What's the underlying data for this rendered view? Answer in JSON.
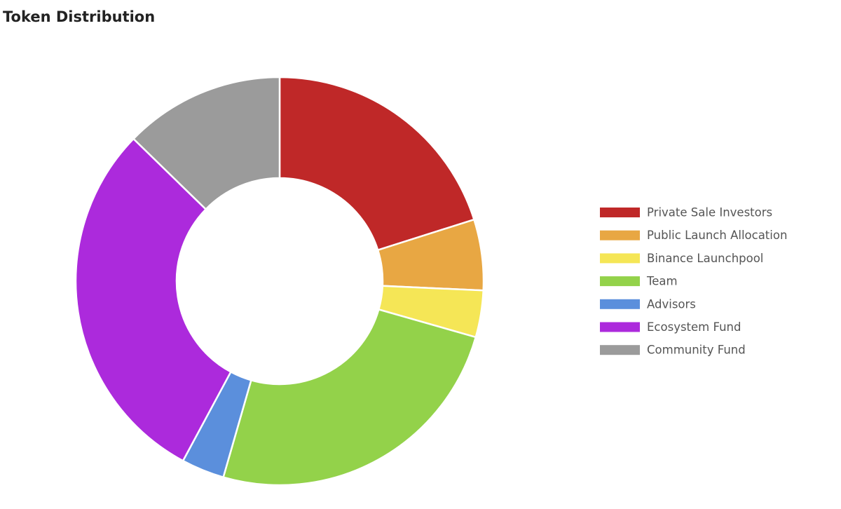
{
  "chart_data": {
    "type": "donut",
    "title": "Token Distribution",
    "categories": [
      "Private Sale Investors",
      "Public Launch Allocation",
      "Binance Launchpool",
      "Team",
      "Advisors",
      "Ecosystem Fund",
      "Community Fund"
    ],
    "values": [
      20.1,
      5.6,
      3.7,
      25,
      3.4,
      29.4,
      12.7
    ],
    "colors": [
      "#bf2828",
      "#e8a743",
      "#f5e656",
      "#93d24a",
      "#5b8fdc",
      "#ac2adc",
      "#9b9b9b"
    ],
    "legend": "right"
  }
}
